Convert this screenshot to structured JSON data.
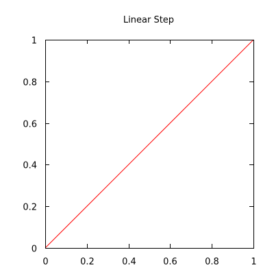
{
  "chart_data": {
    "type": "line",
    "title": "Linear Step",
    "xlabel": "",
    "ylabel": "",
    "xlim": [
      0,
      1
    ],
    "ylim": [
      0,
      1
    ],
    "grid": false,
    "legend": "none",
    "x_ticks": [
      0,
      0.2,
      0.4,
      0.6,
      0.8,
      1
    ],
    "x_tick_labels": [
      "0",
      "0.2",
      "0.4",
      "0.6",
      "0.8",
      "1"
    ],
    "y_ticks": [
      0,
      0.2,
      0.4,
      0.6,
      0.8,
      1
    ],
    "y_tick_labels": [
      "0",
      "0.2",
      "0.4",
      "0.6",
      "0.8",
      "1"
    ],
    "series": [
      {
        "x": [
          0,
          1
        ],
        "y": [
          0,
          1
        ],
        "color": "#ff0000"
      }
    ]
  }
}
